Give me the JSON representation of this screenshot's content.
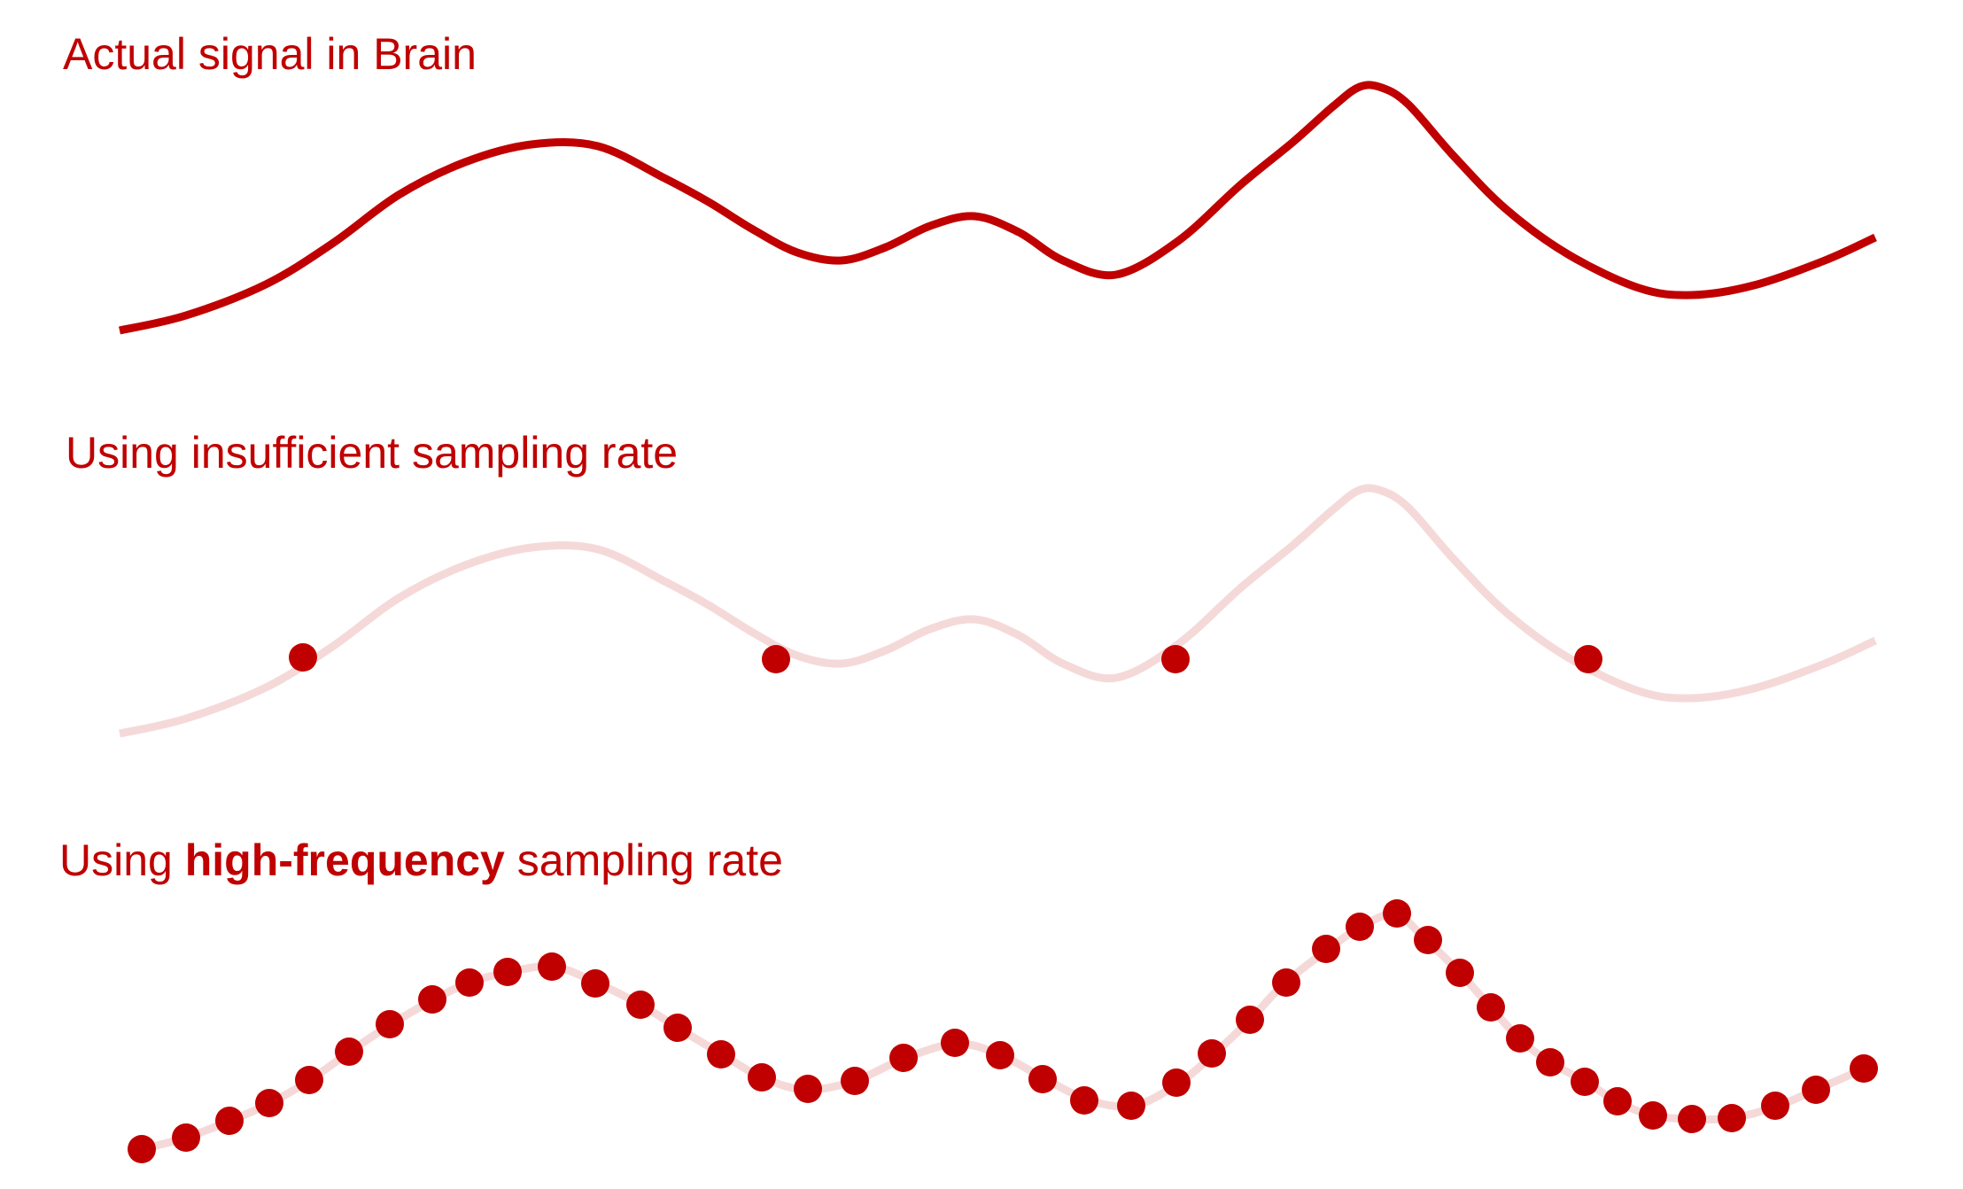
{
  "colors": {
    "signal": "#c00000",
    "faint_signal": "#f5d9d9",
    "sample_dot": "#c00000",
    "background": "#ffffff"
  },
  "panels": [
    {
      "title": "Actual signal in Brain",
      "signal_style": "solid",
      "samples": "none"
    },
    {
      "title": "Using insufficient sampling rate",
      "signal_style": "faint",
      "samples": "sparse",
      "sample_count": 4
    },
    {
      "title_prefix": "Using ",
      "title_emphasis": "high-frequency",
      "title_suffix": " sampling rate",
      "signal_style": "faint",
      "samples": "dense",
      "sample_count": 42
    }
  ]
}
